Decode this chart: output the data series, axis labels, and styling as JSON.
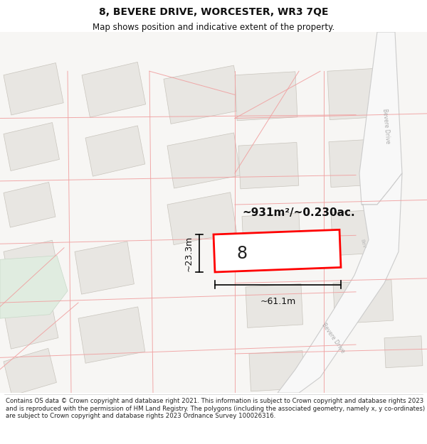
{
  "title": "8, BEVERE DRIVE, WORCESTER, WR3 7QE",
  "subtitle": "Map shows position and indicative extent of the property.",
  "area_text": "~931m²/~0.230ac.",
  "width_label": "~61.1m",
  "height_label": "~23.3m",
  "number_label": "8",
  "footer_text": "Contains OS data © Crown copyright and database right 2021. This information is subject to Crown copyright and database rights 2023 and is reproduced with the permission of HM Land Registry. The polygons (including the associated geometry, namely x, y co-ordinates) are subject to Crown copyright and database rights 2023 Ordnance Survey 100026316.",
  "map_bg": "#f7f6f4",
  "building_fill": "#e8e6e2",
  "building_edge": "#c8c4bc",
  "property_edge": "#ff0000",
  "property_fill": "#ffffff",
  "road_fill": "#ffffff",
  "road_edge": "#cccccc",
  "plot_line_color": "#f0a0a0",
  "green_fill": "#e8f0e8",
  "title_fontsize": 10,
  "subtitle_fontsize": 8.5,
  "footer_fontsize": 6.2
}
